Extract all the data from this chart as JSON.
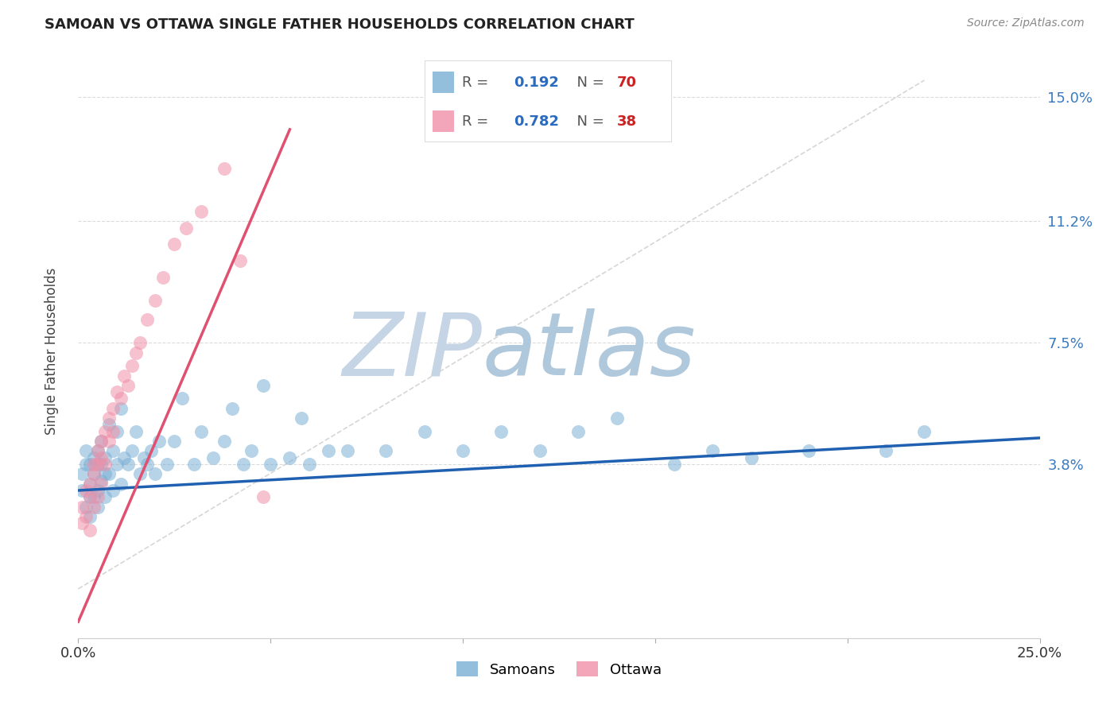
{
  "title": "SAMOAN VS OTTAWA SINGLE FATHER HOUSEHOLDS CORRELATION CHART",
  "source": "Source: ZipAtlas.com",
  "ylabel": "Single Father Households",
  "xlim": [
    0.0,
    0.25
  ],
  "ylim": [
    -0.015,
    0.16
  ],
  "yticks": [
    0.038,
    0.075,
    0.112,
    0.15
  ],
  "ytick_labels": [
    "3.8%",
    "7.5%",
    "11.2%",
    "15.0%"
  ],
  "xticks": [
    0.0,
    0.05,
    0.1,
    0.15,
    0.2,
    0.25
  ],
  "xtick_labels": [
    "0.0%",
    "",
    "",
    "",
    "",
    "25.0%"
  ],
  "samoans_color": "#7aafd4",
  "ottawa_color": "#f090a8",
  "samoans_line_color": "#2060b0",
  "ottawa_line_color": "#e05070",
  "diagonal_color": "#cccccc",
  "watermark_zip_color": "#c8d8e8",
  "watermark_atlas_color": "#b8ccd8",
  "background_color": "#ffffff",
  "grid_color": "#cccccc",
  "samoans_x": [
    0.001,
    0.001,
    0.002,
    0.002,
    0.002,
    0.003,
    0.003,
    0.003,
    0.003,
    0.004,
    0.004,
    0.004,
    0.005,
    0.005,
    0.005,
    0.005,
    0.006,
    0.006,
    0.006,
    0.007,
    0.007,
    0.007,
    0.008,
    0.008,
    0.009,
    0.009,
    0.01,
    0.01,
    0.011,
    0.011,
    0.012,
    0.013,
    0.014,
    0.015,
    0.016,
    0.017,
    0.018,
    0.019,
    0.02,
    0.021,
    0.023,
    0.025,
    0.027,
    0.03,
    0.032,
    0.035,
    0.038,
    0.04,
    0.043,
    0.045,
    0.048,
    0.05,
    0.055,
    0.058,
    0.06,
    0.065,
    0.07,
    0.08,
    0.09,
    0.1,
    0.11,
    0.12,
    0.13,
    0.14,
    0.155,
    0.165,
    0.175,
    0.19,
    0.21,
    0.22
  ],
  "samoans_y": [
    0.03,
    0.035,
    0.025,
    0.038,
    0.042,
    0.032,
    0.038,
    0.028,
    0.022,
    0.035,
    0.04,
    0.028,
    0.038,
    0.042,
    0.03,
    0.025,
    0.038,
    0.045,
    0.033,
    0.04,
    0.035,
    0.028,
    0.05,
    0.035,
    0.042,
    0.03,
    0.048,
    0.038,
    0.055,
    0.032,
    0.04,
    0.038,
    0.042,
    0.048,
    0.035,
    0.04,
    0.038,
    0.042,
    0.035,
    0.045,
    0.038,
    0.045,
    0.058,
    0.038,
    0.048,
    0.04,
    0.045,
    0.055,
    0.038,
    0.042,
    0.062,
    0.038,
    0.04,
    0.052,
    0.038,
    0.042,
    0.042,
    0.042,
    0.048,
    0.042,
    0.048,
    0.042,
    0.048,
    0.052,
    0.038,
    0.042,
    0.04,
    0.042,
    0.042,
    0.048
  ],
  "ottawa_x": [
    0.001,
    0.001,
    0.002,
    0.002,
    0.003,
    0.003,
    0.003,
    0.004,
    0.004,
    0.004,
    0.005,
    0.005,
    0.005,
    0.006,
    0.006,
    0.006,
    0.007,
    0.007,
    0.008,
    0.008,
    0.009,
    0.009,
    0.01,
    0.011,
    0.012,
    0.013,
    0.014,
    0.015,
    0.016,
    0.018,
    0.02,
    0.022,
    0.025,
    0.028,
    0.032,
    0.038,
    0.042,
    0.048
  ],
  "ottawa_y": [
    0.025,
    0.02,
    0.03,
    0.022,
    0.032,
    0.028,
    0.018,
    0.038,
    0.035,
    0.025,
    0.042,
    0.038,
    0.028,
    0.045,
    0.04,
    0.032,
    0.048,
    0.038,
    0.052,
    0.045,
    0.055,
    0.048,
    0.06,
    0.058,
    0.065,
    0.062,
    0.068,
    0.072,
    0.075,
    0.082,
    0.088,
    0.095,
    0.105,
    0.11,
    0.115,
    0.128,
    0.1,
    0.028
  ],
  "samoans_trendline_x": [
    0.0,
    0.25
  ],
  "samoans_trendline_y": [
    0.03,
    0.046
  ],
  "ottawa_trendline_x": [
    0.0,
    0.055
  ],
  "ottawa_trendline_y": [
    -0.01,
    0.14
  ]
}
